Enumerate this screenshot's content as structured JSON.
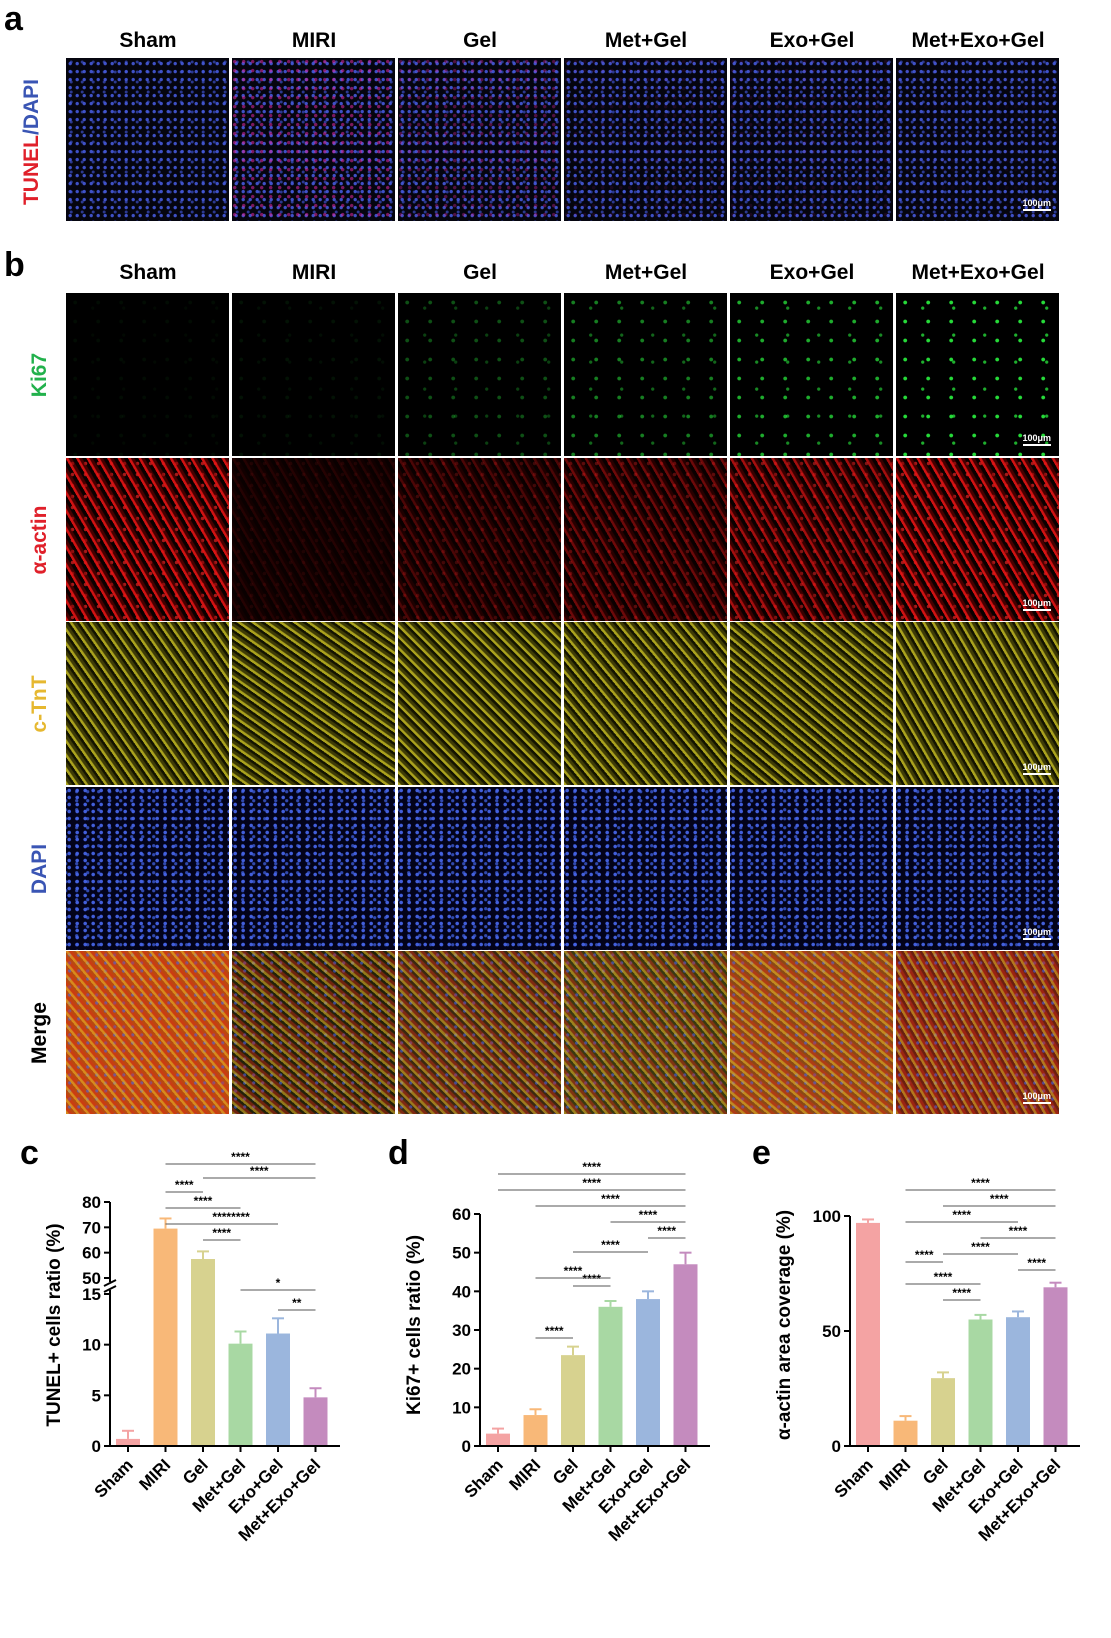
{
  "panels": {
    "a": "a",
    "b": "b",
    "c": "c",
    "d": "d",
    "e": "e"
  },
  "groups": [
    "Sham",
    "MIRI",
    "Gel",
    "Met+Gel",
    "Exo+Gel",
    "Met+Exo+Gel"
  ],
  "scale_label": "100μm",
  "micrograph_rows_a": [
    {
      "label": "TUNEL/DAPI",
      "parts": [
        {
          "text": "TUNEL",
          "color": "#e0202a"
        },
        {
          "text": "/",
          "color": "#3a55b4"
        },
        {
          "text": "DAPI",
          "color": "#3a55b4"
        }
      ]
    }
  ],
  "micrograph_rows_b": [
    {
      "label": "Ki67",
      "color": "#22b14c"
    },
    {
      "label": "α-actin",
      "color": "#e0202a"
    },
    {
      "label": "c-TnT",
      "color": "#e6b830"
    },
    {
      "label": "DAPI",
      "color": "#3a55b4"
    },
    {
      "label": "Merge",
      "color": "#000000"
    }
  ],
  "bar_colors": [
    "#f4a3a3",
    "#f8b878",
    "#d7d28f",
    "#a8d8a3",
    "#9bb6dd",
    "#c48bbe"
  ],
  "chart_data": [
    {
      "id": "c",
      "type": "bar",
      "categories": [
        "Sham",
        "MIRI",
        "Gel",
        "Met+Gel",
        "Exo+Gel",
        "Met+Exo+Gel"
      ],
      "values": [
        0.7,
        69.5,
        57.5,
        10.1,
        11.1,
        4.8
      ],
      "errors": [
        0.8,
        4.0,
        3.0,
        1.2,
        1.5,
        0.9
      ],
      "ylabel": "TUNEL+ cells ratio (%)",
      "broken_axis": {
        "lower": [
          0,
          15
        ],
        "upper": [
          50,
          80
        ]
      },
      "yticks_lower": [
        "0",
        "5",
        "10",
        "15"
      ],
      "yticks_upper": [
        "50",
        "60",
        "70",
        "80"
      ],
      "significance": [
        {
          "from": 1,
          "to": 2,
          "label": "****"
        },
        {
          "from": 1,
          "to": 3,
          "label": "****"
        },
        {
          "from": 1,
          "to": 4,
          "label": "****"
        },
        {
          "from": 1,
          "to": 5,
          "label": "****"
        },
        {
          "from": 2,
          "to": 3,
          "label": "****"
        },
        {
          "from": 2,
          "to": 4,
          "label": "****"
        },
        {
          "from": 2,
          "to": 5,
          "label": "****"
        },
        {
          "from": 3,
          "to": 5,
          "label": "*"
        },
        {
          "from": 4,
          "to": 5,
          "label": "**"
        }
      ]
    },
    {
      "id": "d",
      "type": "bar",
      "categories": [
        "Sham",
        "MIRI",
        "Gel",
        "Met+Gel",
        "Exo+Gel",
        "Met+Exo+Gel"
      ],
      "values": [
        3.2,
        8.0,
        23.5,
        36.0,
        38.0,
        47.0
      ],
      "errors": [
        1.3,
        1.5,
        2.2,
        1.5,
        2.0,
        3.0
      ],
      "ylabel": "Ki67+ cells ratio (%)",
      "ylim": [
        0,
        60
      ],
      "yticks": [
        "0",
        "10",
        "20",
        "30",
        "40",
        "50",
        "60"
      ],
      "significance": [
        {
          "from": 1,
          "to": 2,
          "label": "****"
        },
        {
          "from": 2,
          "to": 3,
          "label": "****"
        },
        {
          "from": 1,
          "to": 3,
          "label": "****"
        },
        {
          "from": 2,
          "to": 4,
          "label": "****"
        },
        {
          "from": 4,
          "to": 5,
          "label": "****"
        },
        {
          "from": 3,
          "to": 5,
          "label": "****"
        },
        {
          "from": 0,
          "to": 5,
          "label": "****"
        },
        {
          "from": 1,
          "to": 5,
          "label": "****"
        },
        {
          "from": 0,
          "to": 5,
          "label": "****"
        }
      ]
    },
    {
      "id": "e",
      "type": "bar",
      "categories": [
        "Sham",
        "MIRI",
        "Gel",
        "Met+Gel",
        "Exo+Gel",
        "Met+Exo+Gel"
      ],
      "values": [
        97.0,
        11.0,
        29.5,
        55.0,
        56.0,
        69.0
      ],
      "errors": [
        1.5,
        2.0,
        2.5,
        2.0,
        2.5,
        2.0
      ],
      "ylabel": "α-actin area coverage (%)",
      "ylim": [
        0,
        100
      ],
      "yticks": [
        "0",
        "50",
        "100"
      ],
      "significance": [
        {
          "from": 1,
          "to": 2,
          "label": "****"
        },
        {
          "from": 2,
          "to": 3,
          "label": "****"
        },
        {
          "from": 1,
          "to": 3,
          "label": "****"
        },
        {
          "from": 4,
          "to": 5,
          "label": "****"
        },
        {
          "from": 2,
          "to": 4,
          "label": "****"
        },
        {
          "from": 3,
          "to": 5,
          "label": "****"
        },
        {
          "from": 1,
          "to": 4,
          "label": "****"
        },
        {
          "from": 2,
          "to": 5,
          "label": "****"
        },
        {
          "from": 1,
          "to": 5,
          "label": "****"
        }
      ]
    }
  ]
}
